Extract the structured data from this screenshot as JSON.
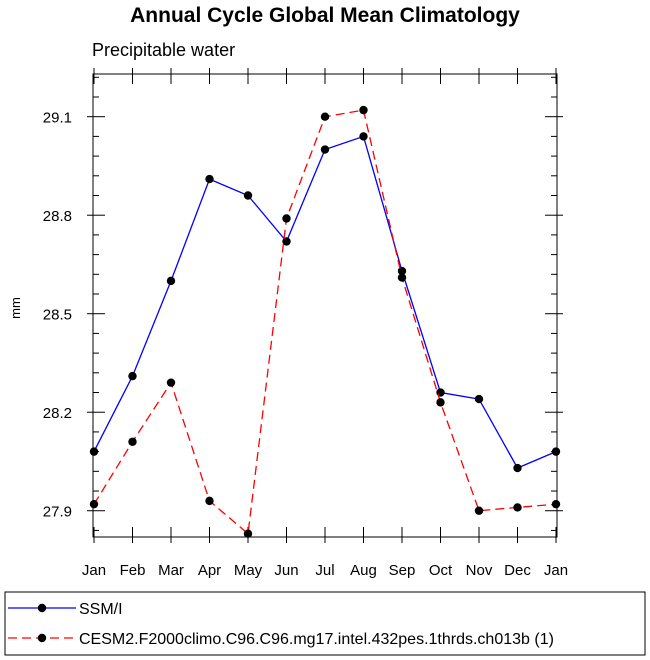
{
  "chart_data": {
    "type": "line",
    "title": "Annual Cycle Global Mean Climatology",
    "subtitle": "Precipitable water",
    "xlabel": "",
    "ylabel": "mm",
    "categories": [
      "Jan",
      "Feb",
      "Mar",
      "Apr",
      "May",
      "Jun",
      "Jul",
      "Aug",
      "Sep",
      "Oct",
      "Nov",
      "Dec",
      "Jan"
    ],
    "yticks": [
      "27.9",
      "28.2",
      "28.5",
      "28.8",
      "29.1"
    ],
    "ylim": [
      27.82,
      29.23
    ],
    "grid": false,
    "legend_position": "bottom",
    "series": [
      {
        "name": "SSM/I",
        "color": "#0000ff",
        "dash": "solid",
        "values": [
          28.08,
          28.31,
          28.6,
          28.91,
          28.86,
          28.72,
          29.0,
          29.04,
          28.63,
          28.26,
          28.24,
          28.03,
          28.08
        ]
      },
      {
        "name": "CESM2.F2000climo.C96.C96.mg17.intel.432pes.1thrds.ch013b (1)",
        "color": "#ff0000",
        "dash": "dashed",
        "values": [
          27.92,
          28.11,
          28.29,
          27.93,
          27.83,
          28.79,
          29.1,
          29.12,
          28.61,
          28.23,
          27.9,
          27.91,
          27.92
        ]
      }
    ]
  }
}
